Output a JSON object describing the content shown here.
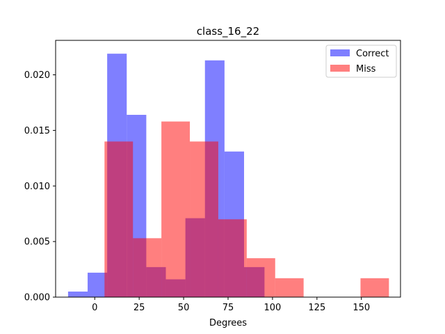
{
  "chart_data": {
    "type": "histogram",
    "title": "class_16_22",
    "xlabel": "Degrees",
    "ylabel": "",
    "xlim": [
      -22,
      172
    ],
    "ylim": [
      0,
      0.0231
    ],
    "xticks": [
      0,
      25,
      50,
      75,
      100,
      125,
      150
    ],
    "yticks": [
      0.0,
      0.005,
      0.01,
      0.015,
      0.02
    ],
    "ytick_labels": [
      "0.000",
      "0.005",
      "0.010",
      "0.015",
      "0.020"
    ],
    "legend_position": "top-right",
    "grid": false,
    "series": [
      {
        "name": "Correct",
        "color": "#0000ff",
        "alpha": 0.5,
        "bins": [
          {
            "x0": -15.0,
            "x1": -4.0,
            "value": 0.0005
          },
          {
            "x0": -4.0,
            "x1": 7.0,
            "value": 0.0022
          },
          {
            "x0": 7.0,
            "x1": 18.0,
            "value": 0.0219
          },
          {
            "x0": 18.0,
            "x1": 29.0,
            "value": 0.0164
          },
          {
            "x0": 29.0,
            "x1": 40.0,
            "value": 0.0027
          },
          {
            "x0": 40.0,
            "x1": 51.0,
            "value": 0.0016
          },
          {
            "x0": 51.0,
            "x1": 62.0,
            "value": 0.0071
          },
          {
            "x0": 62.0,
            "x1": 73.0,
            "value": 0.0213
          },
          {
            "x0": 73.0,
            "x1": 84.0,
            "value": 0.0131
          },
          {
            "x0": 84.0,
            "x1": 95.5,
            "value": 0.0027
          }
        ]
      },
      {
        "name": "Miss",
        "color": "#ff0000",
        "alpha": 0.5,
        "bins": [
          {
            "x0": 5.5,
            "x1": 21.5,
            "value": 0.014
          },
          {
            "x0": 21.5,
            "x1": 37.5,
            "value": 0.0053
          },
          {
            "x0": 37.5,
            "x1": 53.5,
            "value": 0.0158
          },
          {
            "x0": 53.5,
            "x1": 69.5,
            "value": 0.014
          },
          {
            "x0": 69.5,
            "x1": 85.5,
            "value": 0.007
          },
          {
            "x0": 85.5,
            "x1": 101.5,
            "value": 0.0035
          },
          {
            "x0": 101.5,
            "x1": 117.5,
            "value": 0.0017
          },
          {
            "x0": 117.5,
            "x1": 133.5,
            "value": 0.0
          },
          {
            "x0": 133.5,
            "x1": 149.5,
            "value": 0.0
          },
          {
            "x0": 149.5,
            "x1": 165.5,
            "value": 0.0017
          }
        ]
      }
    ]
  }
}
